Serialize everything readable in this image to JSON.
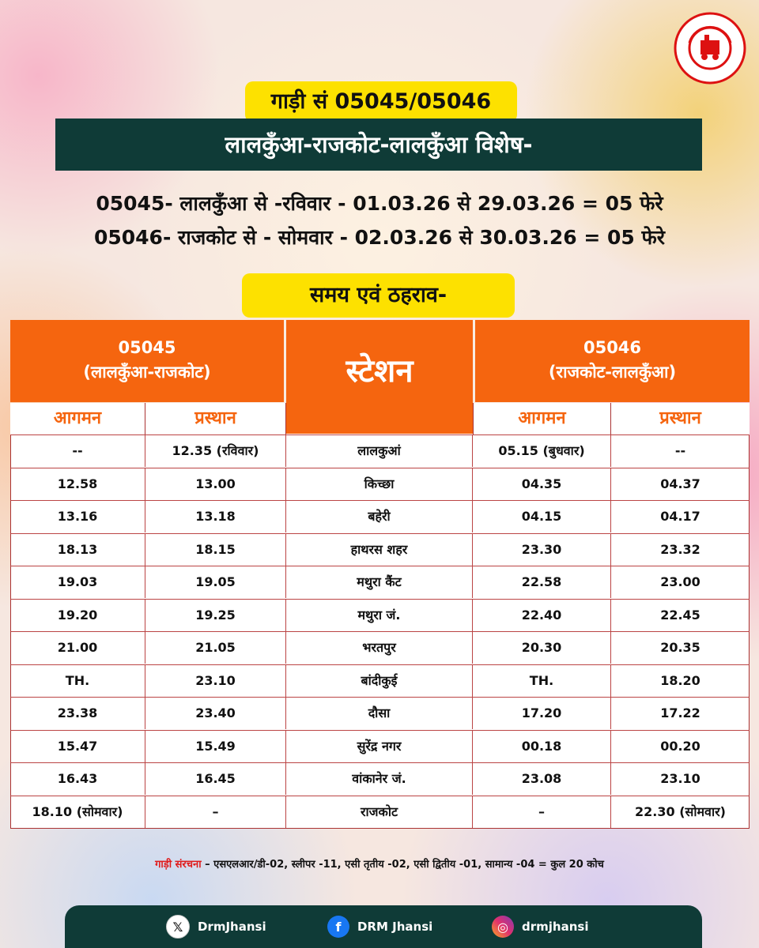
{
  "logo": {
    "text": "INDIAN RAILWAYS",
    "hindi": "भारतीय रेल"
  },
  "train_number": "गाड़ी सं 05045/05046",
  "route_title": "लालकुँआ-राजकोट-लालकुँआ विशेष-",
  "schedule_lines": [
    "05045- लालकुँआ से -रविवार - 01.03.26 से 29.03.26 = 05 फेरे",
    "05046- राजकोट से - सोमवार - 02.03.26 से 30.03.26 = 05 फेरे"
  ],
  "timing_title": "समय एवं ठहराव-",
  "table": {
    "left_train": {
      "number": "05045",
      "route": "(लालकुँआ-राजकोट)"
    },
    "station_header": "स्टेशन",
    "right_train": {
      "number": "05046",
      "route": "(राजकोट-लालकुँआ)"
    },
    "arrival": "आगमन",
    "departure": "प्रस्थान",
    "rows": [
      [
        "--",
        "12.35 (रविवार)",
        "लालकुआं",
        "05.15 (बुधवार)",
        "--"
      ],
      [
        "12.58",
        "13.00",
        "किच्छा",
        "04.35",
        "04.37"
      ],
      [
        "13.16",
        "13.18",
        "बहेरी",
        "04.15",
        "04.17"
      ],
      [
        "18.13",
        "18.15",
        "हाथरस शहर",
        "23.30",
        "23.32"
      ],
      [
        "19.03",
        "19.05",
        "मथुरा कैंट",
        "22.58",
        "23.00"
      ],
      [
        "19.20",
        "19.25",
        "मथुरा जं.",
        "22.40",
        "22.45"
      ],
      [
        "21.00",
        "21.05",
        "भरतपुर",
        "20.30",
        "20.35"
      ],
      [
        "TH.",
        "23.10",
        "बांदीकुई",
        "TH.",
        "18.20"
      ],
      [
        "23.38",
        "23.40",
        "दौसा",
        "17.20",
        "17.22"
      ],
      [
        "15.47",
        "15.49",
        "सुरेंद्र नगर",
        "00.18",
        "00.20"
      ],
      [
        "16.43",
        "16.45",
        "वांकानेर जं.",
        "23.08",
        "23.10"
      ],
      [
        "18.10 (सोमवार)",
        "–",
        "राजकोट",
        "–",
        "22.30 (सोमवार)"
      ]
    ]
  },
  "composition": {
    "label": "गाड़ी संरचना",
    "text": " – एसएलआर/डी-02, स्लीपर -11, एसी तृतीय -02, एसी द्वितीय -01, सामान्य -04 = कुल 20 कोच"
  },
  "footer": {
    "x": {
      "icon": "x-icon",
      "handle": "DrmJhansi"
    },
    "facebook": {
      "icon": "facebook-icon",
      "handle": "DRM Jhansi"
    },
    "instagram": {
      "icon": "instagram-icon",
      "handle": "drmjhansi"
    }
  }
}
